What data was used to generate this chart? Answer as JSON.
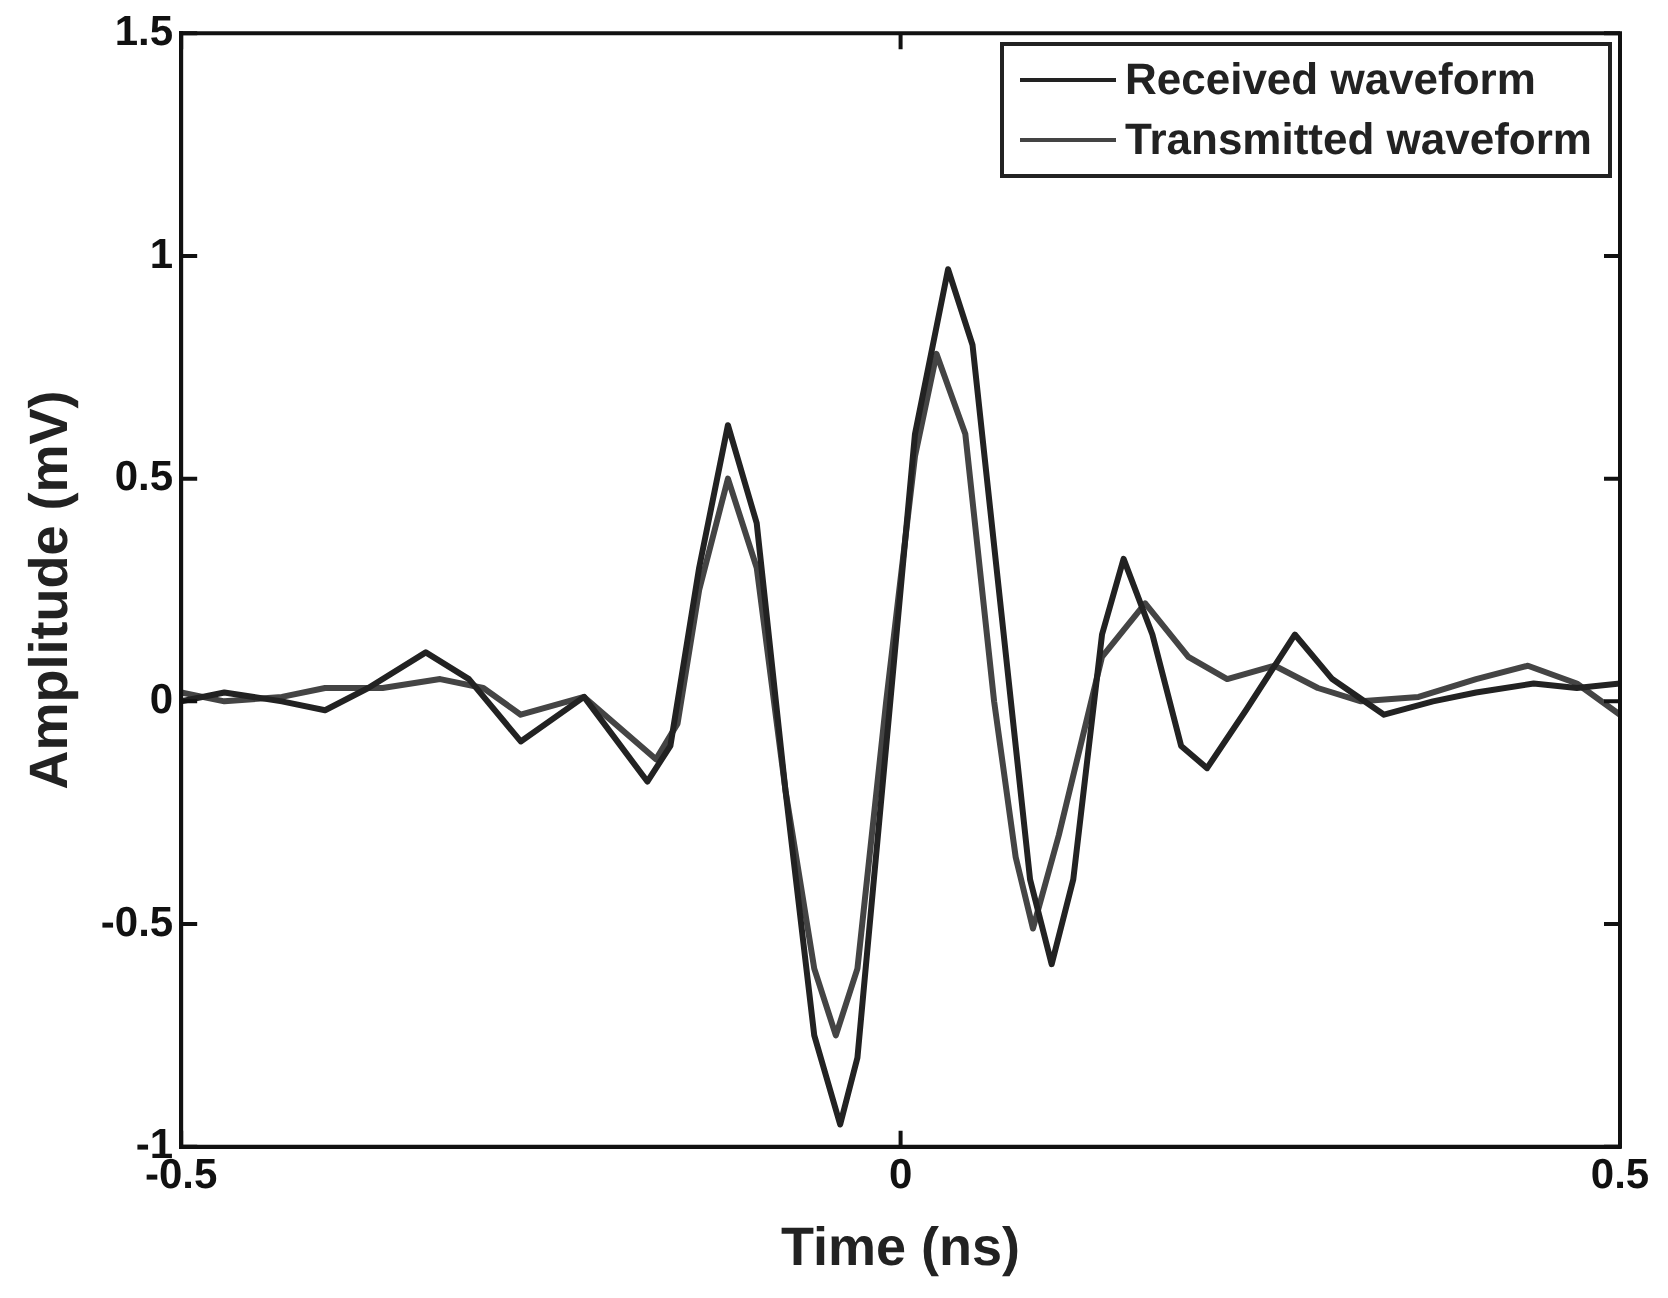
{
  "chart_data": {
    "type": "line",
    "xlabel": "Time (ns)",
    "ylabel": "Amplitude (mV)",
    "xlim": [
      -0.5,
      0.5
    ],
    "xticks": [
      -0.5,
      0,
      0.5
    ],
    "ylim": [
      -1,
      1.5
    ],
    "yticks": [
      -1,
      -0.5,
      0,
      0.5,
      1,
      1.5
    ],
    "grid": false,
    "legend": "top right",
    "marker": "none",
    "line_style": "solid",
    "series": [
      {
        "name": "Received waveform",
        "color": "#222222",
        "x": [
          -0.5,
          -0.47,
          -0.43,
          -0.4,
          -0.37,
          -0.33,
          -0.3,
          -0.264,
          -0.22,
          -0.176,
          -0.16,
          -0.14,
          -0.12,
          -0.1,
          -0.08,
          -0.06,
          -0.042,
          -0.03,
          -0.01,
          0.01,
          0.033,
          0.05,
          0.07,
          0.09,
          0.105,
          0.12,
          0.14,
          0.155,
          0.175,
          0.195,
          0.213,
          0.24,
          0.274,
          0.3,
          0.336,
          0.37,
          0.4,
          0.44,
          0.47,
          0.5
        ],
        "values": [
          0,
          0.02,
          0,
          -0.02,
          0.03,
          0.11,
          0.05,
          -0.09,
          0.01,
          -0.18,
          -0.1,
          0.3,
          0.62,
          0.4,
          -0.2,
          -0.75,
          -0.95,
          -0.8,
          -0.1,
          0.6,
          0.97,
          0.8,
          0.2,
          -0.4,
          -0.59,
          -0.4,
          0.15,
          0.32,
          0.15,
          -0.1,
          -0.15,
          -0.02,
          0.15,
          0.05,
          -0.03,
          0,
          0.02,
          0.04,
          0.03,
          0.04
        ]
      },
      {
        "name": "Transmitted waveform",
        "color": "#444444",
        "x": [
          -0.5,
          -0.47,
          -0.43,
          -0.4,
          -0.36,
          -0.32,
          -0.29,
          -0.264,
          -0.22,
          -0.17,
          -0.155,
          -0.14,
          -0.12,
          -0.1,
          -0.08,
          -0.06,
          -0.045,
          -0.03,
          -0.01,
          0.01,
          0.025,
          0.045,
          0.065,
          0.08,
          0.092,
          0.11,
          0.14,
          0.17,
          0.2,
          0.227,
          0.26,
          0.29,
          0.32,
          0.36,
          0.4,
          0.436,
          0.47,
          0.5
        ],
        "values": [
          0.02,
          0,
          0.01,
          0.03,
          0.03,
          0.05,
          0.03,
          -0.03,
          0.01,
          -0.13,
          -0.05,
          0.25,
          0.5,
          0.3,
          -0.2,
          -0.6,
          -0.75,
          -0.6,
          0,
          0.55,
          0.78,
          0.6,
          0,
          -0.35,
          -0.51,
          -0.3,
          0.1,
          0.22,
          0.1,
          0.05,
          0.08,
          0.03,
          0,
          0.01,
          0.05,
          0.08,
          0.04,
          -0.03
        ]
      }
    ]
  }
}
